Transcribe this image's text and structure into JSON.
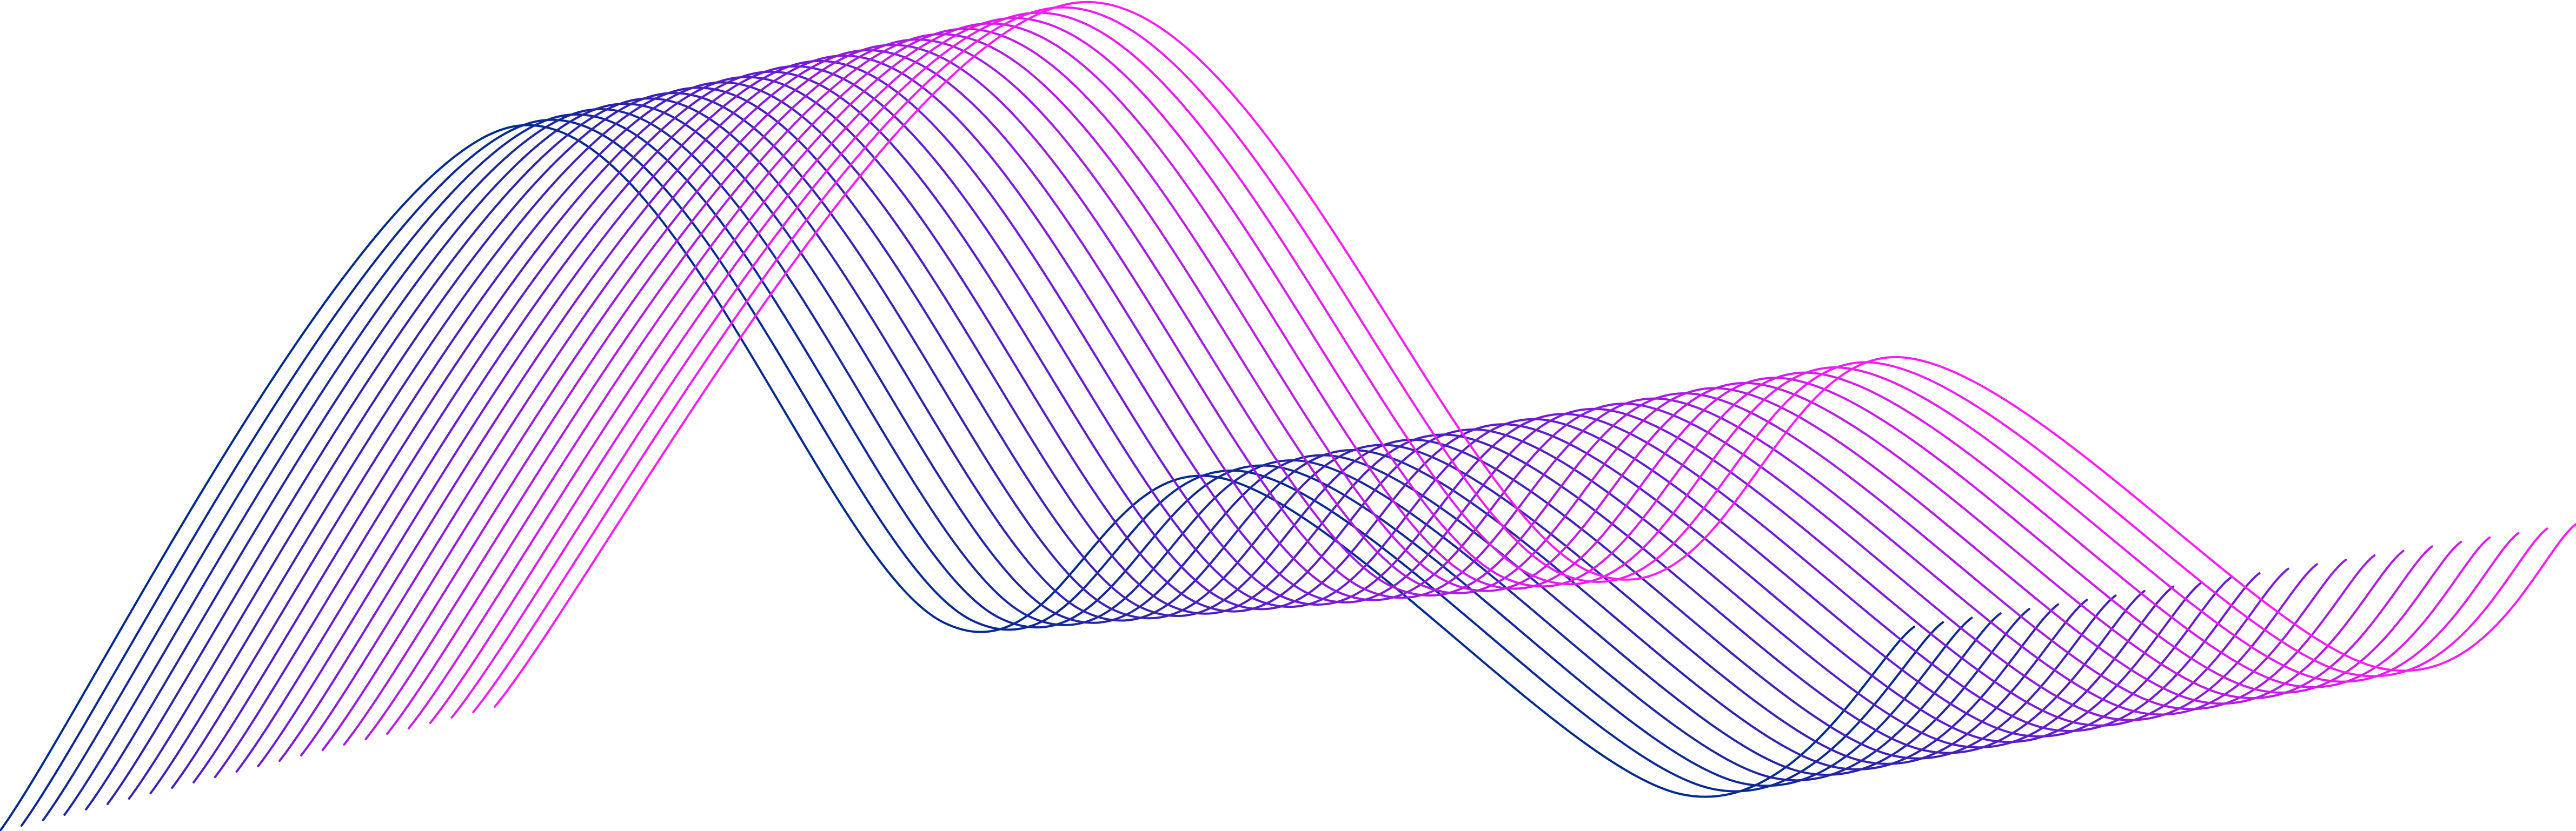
{
  "artwork": {
    "subject": "wave-lines",
    "line_count": 24,
    "colors": {
      "start": "#002a8c",
      "mid": "#6a1ad6",
      "end": "#ff1cf2"
    },
    "background": "#ffffff"
  }
}
